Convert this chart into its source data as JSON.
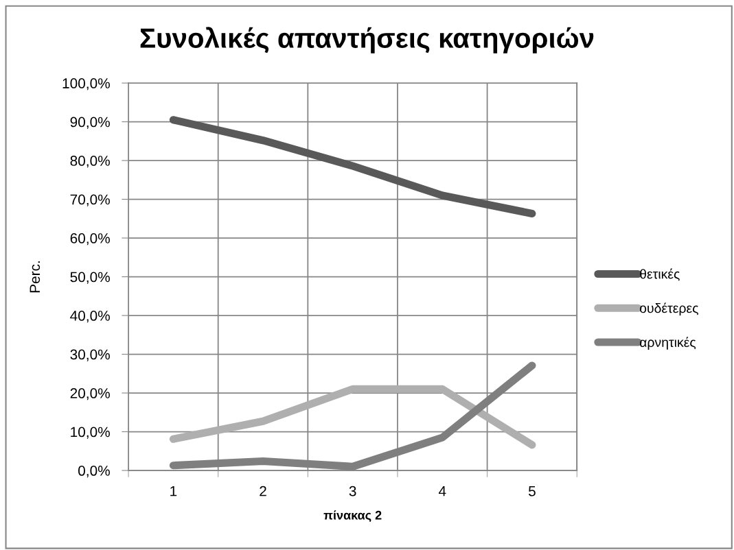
{
  "chart_data": {
    "type": "line",
    "title": "Συνολικές απαντήσεις κατηγοριών",
    "xlabel": "πίνακας 2",
    "ylabel": "Perc.",
    "categories": [
      "1",
      "2",
      "3",
      "4",
      "5"
    ],
    "series": [
      {
        "name": "θετικές",
        "color": "#595959",
        "values": [
          90.5,
          85.2,
          78.6,
          71.0,
          66.3
        ]
      },
      {
        "name": "ουδέτερες",
        "color": "#afafaf",
        "values": [
          8.1,
          12.7,
          21.0,
          21.0,
          6.6
        ]
      },
      {
        "name": "αρνητικές",
        "color": "#7f7f7f",
        "values": [
          1.3,
          2.4,
          1.0,
          8.5,
          27.1
        ]
      }
    ],
    "ylim": [
      0,
      100
    ],
    "yticks": [
      {
        "value": 0,
        "label": "0,0%"
      },
      {
        "value": 10,
        "label": "10,0%"
      },
      {
        "value": 20,
        "label": "20,0%"
      },
      {
        "value": 30,
        "label": "30,0%"
      },
      {
        "value": 40,
        "label": "40,0%"
      },
      {
        "value": 50,
        "label": "50,0%"
      },
      {
        "value": 60,
        "label": "60,0%"
      },
      {
        "value": 70,
        "label": "70,0%"
      },
      {
        "value": 80,
        "label": "80,0%"
      },
      {
        "value": 90,
        "label": "90,0%"
      },
      {
        "value": 100,
        "label": "100,0%"
      }
    ],
    "grid": true,
    "legend": "right",
    "line_style": "solid"
  }
}
